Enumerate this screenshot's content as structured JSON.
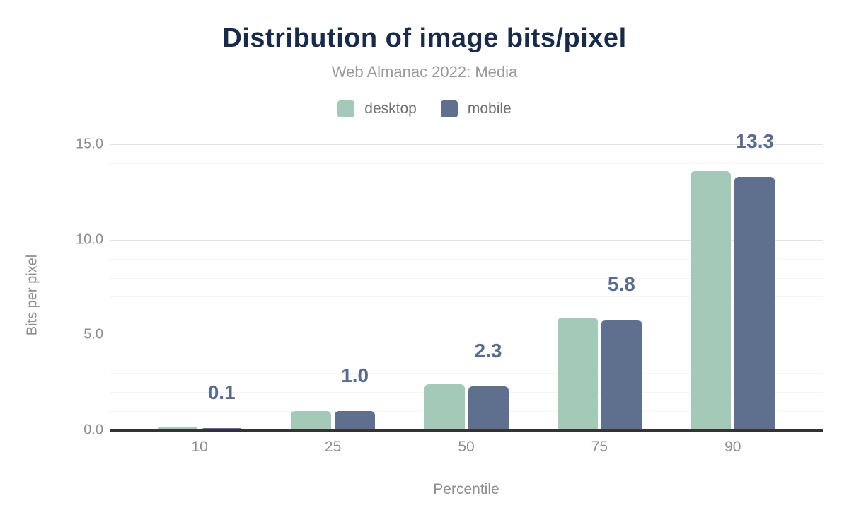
{
  "figure": {
    "title": "Distribution of image bits/pixel",
    "subtitle": "Web Almanac 2022: Media"
  },
  "chart_data": {
    "type": "bar",
    "title": "Distribution of image bits/pixel",
    "subtitle": "Web Almanac 2022: Media",
    "xlabel": "Percentile",
    "ylabel": "Bits per pixel",
    "categories": [
      "10",
      "25",
      "50",
      "75",
      "90"
    ],
    "series": [
      {
        "name": "desktop",
        "color": "#a5c9b8",
        "values": [
          0.2,
          1.0,
          2.4,
          5.9,
          13.6
        ]
      },
      {
        "name": "mobile",
        "color": "#5f6f8e",
        "values": [
          0.1,
          1.0,
          2.3,
          5.8,
          13.3
        ]
      }
    ],
    "data_labels": [
      "0.1",
      "1.0",
      "2.3",
      "5.8",
      "13.3"
    ],
    "data_label_series": "mobile",
    "ylim": [
      0,
      15
    ],
    "y_major_ticks": [
      0,
      5,
      10,
      15
    ],
    "y_tick_labels": [
      "0.0",
      "5.0",
      "10.0",
      "15.0"
    ],
    "y_minor_step": 1,
    "grid": true,
    "legend_position": "top"
  },
  "colors": {
    "title": "#1a2b49",
    "subtitle": "#9a9a9a",
    "axis_text": "#8e8e8e",
    "legend_text": "#6f6f6f",
    "data_label": "#5a6c8d",
    "grid_major": "#e3e3e3",
    "grid_minor": "#f4f4f4",
    "baseline": "#333333",
    "background": "#ffffff"
  }
}
